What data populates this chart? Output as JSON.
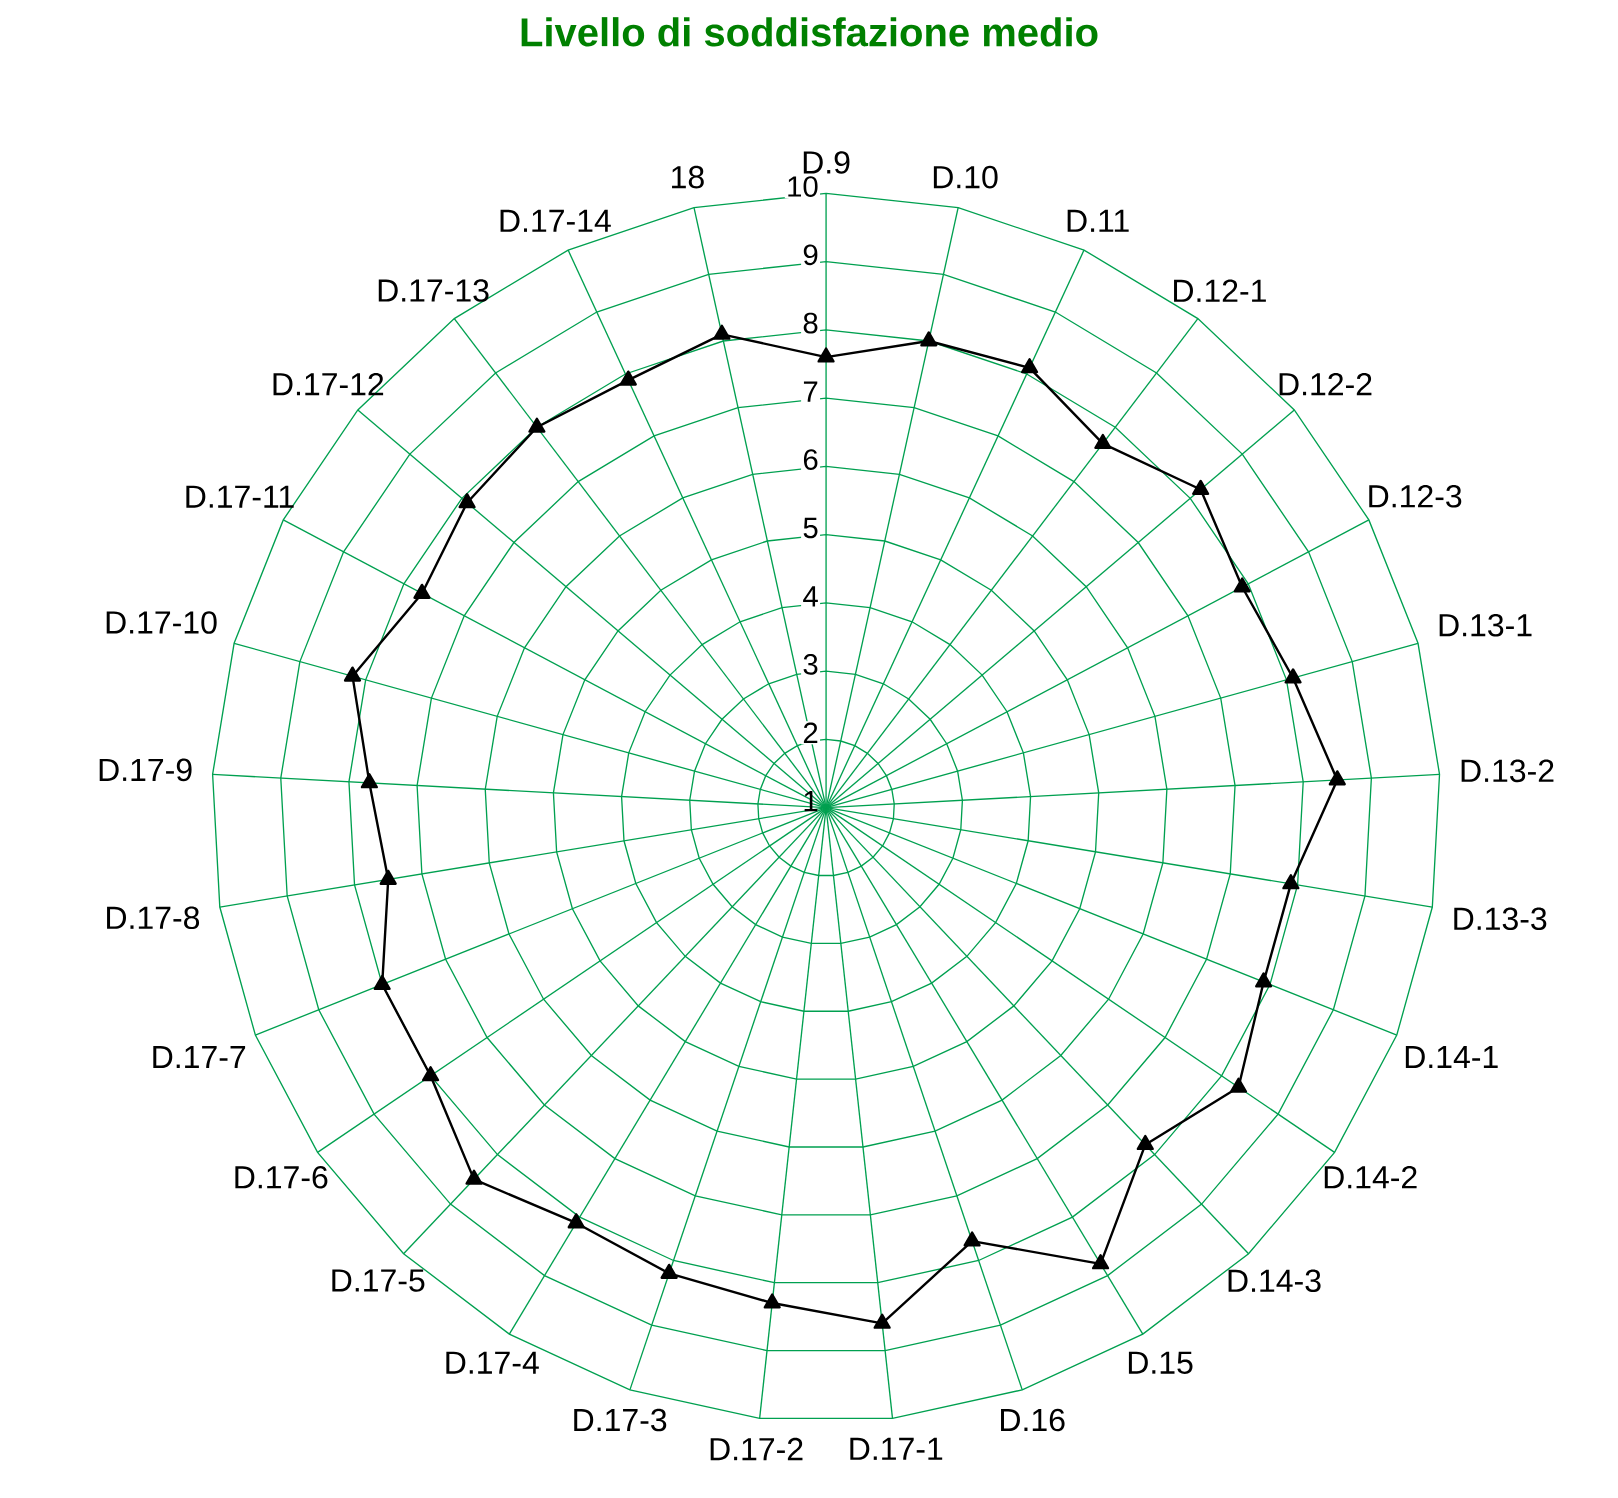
{
  "chart_data": {
    "type": "radar",
    "title": "Livello di soddisfazione medio",
    "categories": [
      "D.9",
      "D.10",
      "D.11",
      "D.12-1",
      "D.12-2",
      "D.12-3",
      "D.13-1",
      "D.13-2",
      "D.13-3",
      "D.14-1",
      "D.14-2",
      "D.14-3",
      "D.15",
      "D.16",
      "D.17-1",
      "D.17-2",
      "D.17-3",
      "D.17-4",
      "D.17-5",
      "D.17-6",
      "D.17-7",
      "D.17-8",
      "D.17-9",
      "D.17-10",
      "D.17-11",
      "D.17-12",
      "D.17-13",
      "D.17-14",
      "18"
    ],
    "series": [
      {
        "color": "#000000",
        "values": [
          7.6,
          8.0,
          8.1,
          7.7,
          8.2,
          7.9,
          8.1,
          8.5,
          7.9,
          7.9,
          8.3,
          7.8,
          8.8,
          7.7,
          8.6,
          8.3,
          8.2,
          8.1,
          8.5,
          8.0,
          8.0,
          7.5,
          7.7,
          8.2,
          7.7,
          7.9,
          8.0,
          7.9,
          8.1
        ]
      }
    ],
    "ylim": [
      1,
      10
    ],
    "yticks": [
      1,
      2,
      3,
      4,
      5,
      6,
      7,
      8,
      9,
      10
    ],
    "grid": true,
    "marker": "triangle",
    "line_style": "solid"
  }
}
